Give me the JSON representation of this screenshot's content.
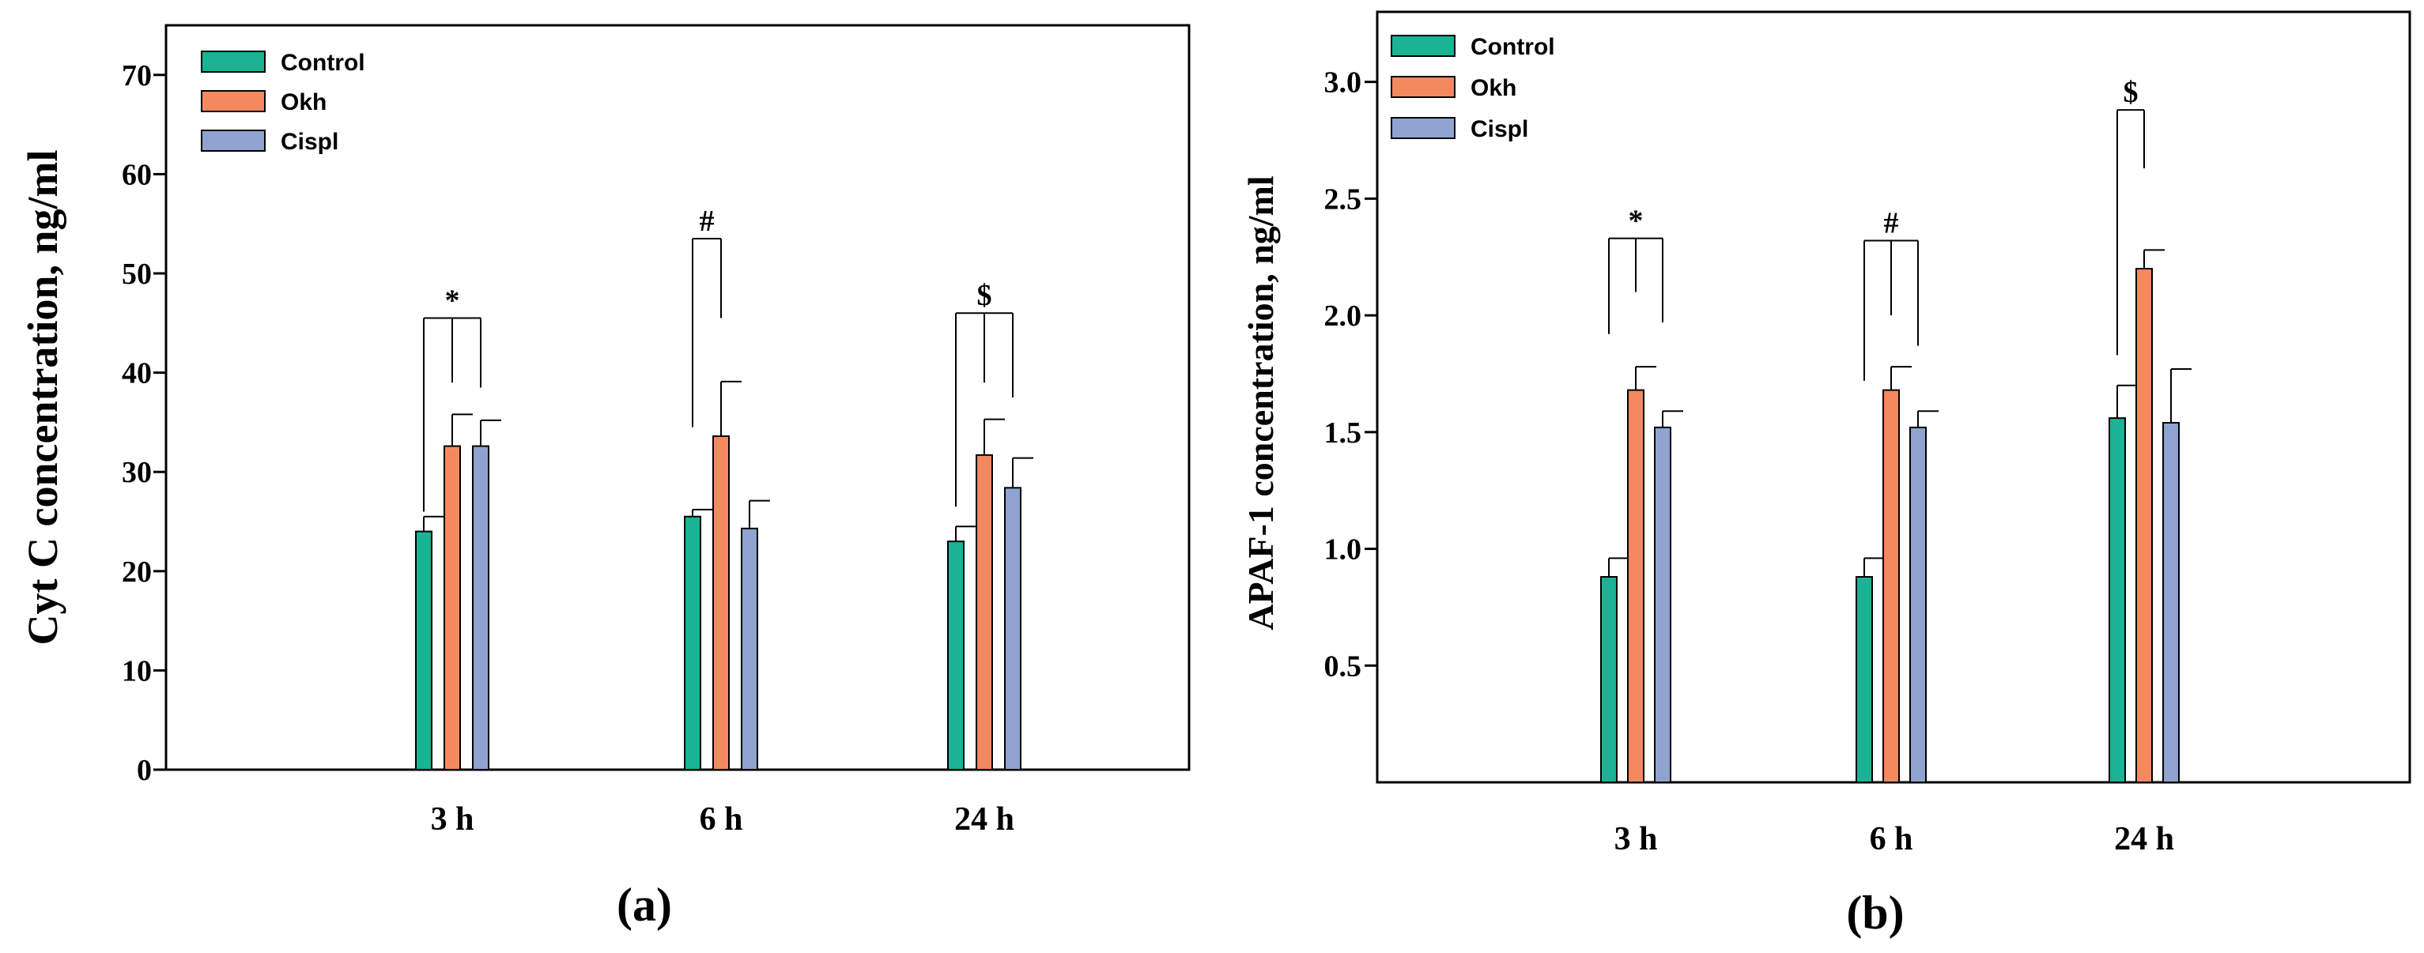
{
  "colors": {
    "Control": "#1ab394",
    "Okh": "#f4895f",
    "Cispl": "#8ea3cf"
  },
  "chart_data": [
    {
      "type": "bar",
      "panel_label": "(a)",
      "ylabel": "Cyt C concentration, ng/ml",
      "xlabel": "",
      "ylim": [
        0,
        75
      ],
      "yticks": [
        0,
        10,
        20,
        30,
        40,
        50,
        60,
        70
      ],
      "ytick_labels": [
        "0",
        "10",
        "20",
        "30",
        "40",
        "50",
        "60",
        "70"
      ],
      "categories": [
        "3 h",
        "6 h",
        "24 h"
      ],
      "legend": {
        "position": "top-left",
        "entries": [
          "Control",
          "Okh",
          "Cispl"
        ]
      },
      "series": [
        {
          "name": "Control",
          "values": [
            24.0,
            25.5,
            23.0
          ],
          "errors": [
            1.5,
            0.7,
            1.5
          ]
        },
        {
          "name": "Okh",
          "values": [
            32.6,
            33.6,
            31.7
          ],
          "errors": [
            3.2,
            5.5,
            3.6
          ]
        },
        {
          "name": "Cispl",
          "values": [
            32.6,
            24.3,
            28.4
          ],
          "errors": [
            2.6,
            2.8,
            3.0
          ]
        }
      ],
      "annotations": [
        {
          "category": "3 h",
          "symbol": "*",
          "top": 45.5,
          "links": [
            {
              "series": "Control",
              "end": 26.0
            },
            {
              "series": "Okh",
              "end": 39.0
            },
            {
              "series": "Cispl",
              "end": 38.5
            }
          ]
        },
        {
          "category": "6 h",
          "symbol": "#",
          "top": 53.5,
          "links": [
            {
              "series": "Control",
              "end": 34.5
            },
            {
              "series": "Okh",
              "end": 45.5
            }
          ]
        },
        {
          "category": "24 h",
          "symbol": "$",
          "top": 46.0,
          "links": [
            {
              "series": "Control",
              "end": 26.5
            },
            {
              "series": "Okh",
              "end": 39.0
            },
            {
              "series": "Cispl",
              "end": 37.5
            }
          ]
        }
      ]
    },
    {
      "type": "bar",
      "panel_label": "(b)",
      "ylabel": "APAF-1 concentration, ng/ml",
      "xlabel": "",
      "ylim": [
        0,
        3.3
      ],
      "yticks": [
        0.5,
        1.0,
        1.5,
        2.0,
        2.5,
        3.0
      ],
      "ytick_labels": [
        "0.5",
        "1.0",
        "1.5",
        "2.0",
        "2.5",
        "3.0"
      ],
      "categories": [
        "3 h",
        "6 h",
        "24 h"
      ],
      "legend": {
        "position": "top-left",
        "entries": [
          "Control",
          "Okh",
          "Cispl"
        ]
      },
      "series": [
        {
          "name": "Control",
          "values": [
            0.88,
            0.88,
            1.56
          ],
          "errors": [
            0.08,
            0.08,
            0.14
          ]
        },
        {
          "name": "Okh",
          "values": [
            1.68,
            1.68,
            2.2
          ],
          "errors": [
            0.1,
            0.1,
            0.08
          ]
        },
        {
          "name": "Cispl",
          "values": [
            1.52,
            1.52,
            1.54
          ],
          "errors": [
            0.07,
            0.07,
            0.23
          ]
        }
      ],
      "annotations": [
        {
          "category": "3 h",
          "symbol": "*",
          "top": 2.33,
          "links": [
            {
              "series": "Control",
              "end": 1.92
            },
            {
              "series": "Okh",
              "end": 2.1
            },
            {
              "series": "Cispl",
              "end": 1.97
            }
          ]
        },
        {
          "category": "6 h",
          "symbol": "#",
          "top": 2.32,
          "links": [
            {
              "series": "Control",
              "end": 1.72
            },
            {
              "series": "Okh",
              "end": 2.0
            },
            {
              "series": "Cispl",
              "end": 1.87
            }
          ]
        },
        {
          "category": "24 h",
          "symbol": "$",
          "top": 2.88,
          "links": [
            {
              "series": "Control",
              "end": 1.83
            },
            {
              "series": "Okh",
              "end": 2.63
            }
          ]
        }
      ]
    }
  ]
}
